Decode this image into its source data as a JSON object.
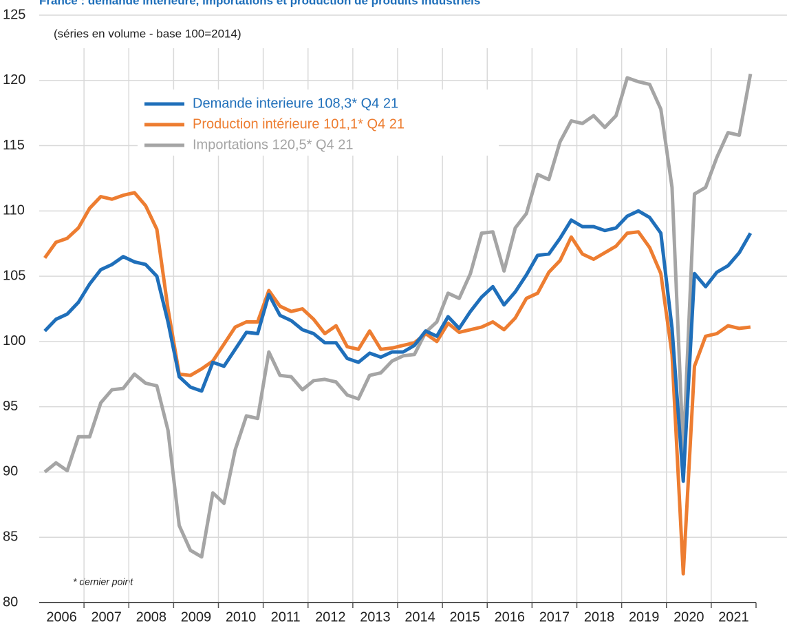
{
  "chart_data": {
    "type": "line",
    "title": "France : demande intérieure, importations et production de produits industriels",
    "subtitle": "(séries en volume - base 100=2014)",
    "annotation": "* dernier point",
    "categories": [
      "2006",
      null,
      null,
      null,
      "2007",
      null,
      null,
      null,
      "2008",
      null,
      null,
      null,
      "2009",
      null,
      null,
      null,
      "2010",
      null,
      null,
      null,
      "2011",
      null,
      null,
      null,
      "2012",
      null,
      null,
      null,
      "2013",
      null,
      null,
      null,
      "2014",
      null,
      null,
      null,
      "2015",
      null,
      null,
      null,
      "2016",
      null,
      null,
      null,
      "2017",
      null,
      null,
      null,
      "2018",
      null,
      null,
      null,
      "2019",
      null,
      null,
      null,
      "2020",
      null,
      null,
      null,
      "2021",
      null,
      null,
      null
    ],
    "series": [
      {
        "name": "Demande interieure 108,3* Q4 21",
        "color": "#1f6fba",
        "values": [
          100.8,
          101.7,
          102.1,
          103.0,
          104.4,
          105.5,
          105.9,
          106.5,
          106.1,
          105.9,
          105.0,
          101.5,
          97.3,
          96.5,
          96.2,
          98.4,
          98.1,
          99.4,
          100.7,
          100.6,
          103.6,
          102.0,
          101.6,
          100.9,
          100.6,
          99.9,
          99.9,
          98.7,
          98.4,
          99.1,
          98.8,
          99.2,
          99.2,
          99.7,
          100.8,
          100.4,
          101.9,
          101.0,
          102.3,
          103.4,
          104.2,
          102.8,
          103.8,
          105.1,
          106.6,
          106.7,
          107.9,
          109.3,
          108.8,
          108.8,
          108.5,
          108.7,
          109.6,
          110.0,
          109.5,
          108.3,
          101.0,
          89.3,
          105.2,
          104.2,
          105.3,
          105.8,
          106.8,
          108.3
        ]
      },
      {
        "name": "Production intérieure 101,1* Q4 21",
        "color": "#ed7d31",
        "values": [
          106.4,
          107.6,
          107.9,
          108.7,
          110.2,
          111.1,
          110.9,
          111.2,
          111.4,
          110.4,
          108.6,
          102.5,
          97.5,
          97.4,
          97.9,
          98.5,
          99.8,
          101.1,
          101.5,
          101.5,
          103.9,
          102.7,
          102.3,
          102.5,
          101.7,
          100.6,
          101.2,
          99.6,
          99.4,
          100.8,
          99.4,
          99.5,
          99.7,
          99.9,
          100.6,
          100.0,
          101.4,
          100.7,
          100.9,
          101.1,
          101.5,
          100.9,
          101.8,
          103.3,
          103.7,
          105.3,
          106.2,
          108.0,
          106.7,
          106.3,
          106.8,
          107.3,
          108.3,
          108.4,
          107.2,
          105.2,
          99.0,
          82.2,
          98.1,
          100.4,
          100.6,
          101.2,
          101.0,
          101.1
        ]
      },
      {
        "name": "Importations 120,5* Q4 21",
        "color": "#a5a5a5",
        "values": [
          90.0,
          90.7,
          90.1,
          92.7,
          92.7,
          95.3,
          96.3,
          96.4,
          97.5,
          96.8,
          96.6,
          93.2,
          85.9,
          84.0,
          83.5,
          88.4,
          87.6,
          91.7,
          94.3,
          94.1,
          99.2,
          97.4,
          97.3,
          96.3,
          97.0,
          97.1,
          96.9,
          95.9,
          95.6,
          97.4,
          97.6,
          98.5,
          98.9,
          99.0,
          100.7,
          101.5,
          103.7,
          103.3,
          105.2,
          108.3,
          108.4,
          105.4,
          108.7,
          109.8,
          112.8,
          112.4,
          115.3,
          116.9,
          116.7,
          117.3,
          116.4,
          117.3,
          120.2,
          119.9,
          119.7,
          117.8,
          111.8,
          91.5,
          111.3,
          111.8,
          114.1,
          116.0,
          115.8,
          120.5
        ]
      }
    ],
    "ylim": [
      80,
      125
    ],
    "yticks": [
      80,
      85,
      90,
      95,
      100,
      105,
      110,
      115,
      120,
      125
    ],
    "grid": true
  }
}
